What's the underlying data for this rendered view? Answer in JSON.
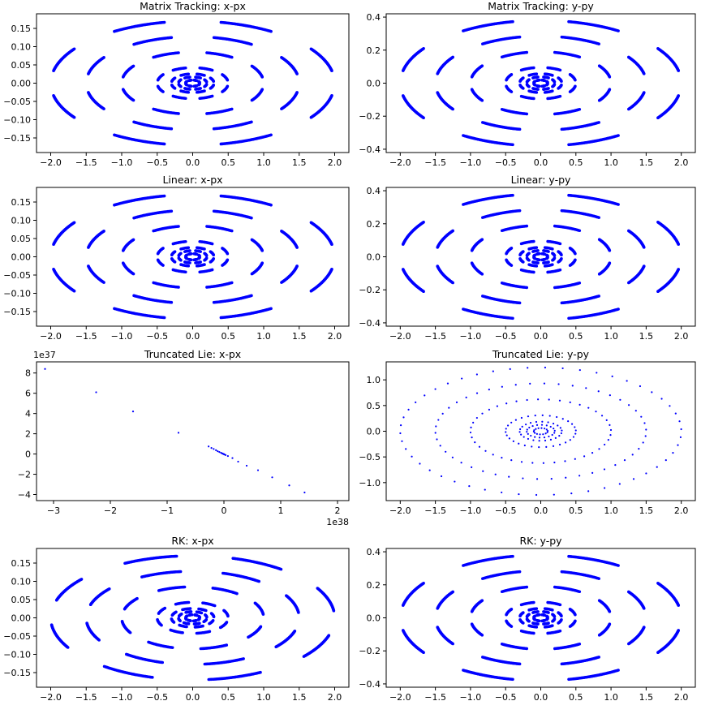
{
  "colors": {
    "points": "#0000ff",
    "axes": "#000000",
    "background": "#ffffff"
  },
  "chart_data": [
    {
      "type": "scatter",
      "title": "Matrix Tracking: x-px",
      "xlim": [
        -2.2,
        2.2
      ],
      "ylim": [
        -0.19,
        0.19
      ],
      "xticks": [
        -2.0,
        -1.5,
        -1.0,
        -0.5,
        0.0,
        0.5,
        1.0,
        1.5,
        2.0
      ],
      "yticks": [
        -0.15,
        -0.1,
        -0.05,
        0.0,
        0.05,
        0.1,
        0.15
      ],
      "x_tick_labels": [
        "−2.0",
        "−1.5",
        "−1.0",
        "−0.5",
        "0.0",
        "0.5",
        "1.0",
        "1.5",
        "2.0"
      ],
      "y_tick_labels": [
        "−0.15",
        "−0.10",
        "−0.05",
        "0.00",
        "0.05",
        "0.10",
        "0.15"
      ],
      "series": [
        {
          "pattern": "rings",
          "amplitudes": [
            0.1,
            0.2,
            0.3,
            0.5,
            1.0,
            1.5,
            2.0
          ],
          "momentum_scale": 0.085,
          "arc_count": 8,
          "arc_halfwidth_deg": 11,
          "phase_deg": 0
        }
      ]
    },
    {
      "type": "scatter",
      "title": "Matrix Tracking: y-py",
      "xlim": [
        -2.2,
        2.2
      ],
      "ylim": [
        -0.42,
        0.42
      ],
      "xticks": [
        -2.0,
        -1.5,
        -1.0,
        -0.5,
        0.0,
        0.5,
        1.0,
        1.5,
        2.0
      ],
      "yticks": [
        -0.4,
        -0.2,
        0.0,
        0.2,
        0.4
      ],
      "x_tick_labels": [
        "−2.0",
        "−1.5",
        "−1.0",
        "−0.5",
        "0.0",
        "0.5",
        "1.0",
        "1.5",
        "2.0"
      ],
      "y_tick_labels": [
        "−0.4",
        "−0.2",
        "0.0",
        "0.2",
        "0.4"
      ],
      "series": [
        {
          "pattern": "rings",
          "amplitudes": [
            0.1,
            0.2,
            0.3,
            0.5,
            1.0,
            1.5,
            2.0
          ],
          "momentum_scale": 0.19,
          "arc_count": 8,
          "arc_halfwidth_deg": 11,
          "phase_deg": 0
        }
      ]
    },
    {
      "type": "scatter",
      "title": "Linear: x-px",
      "xlim": [
        -2.2,
        2.2
      ],
      "ylim": [
        -0.19,
        0.19
      ],
      "xticks": [
        -2.0,
        -1.5,
        -1.0,
        -0.5,
        0.0,
        0.5,
        1.0,
        1.5,
        2.0
      ],
      "yticks": [
        -0.15,
        -0.1,
        -0.05,
        0.0,
        0.05,
        0.1,
        0.15
      ],
      "x_tick_labels": [
        "−2.0",
        "−1.5",
        "−1.0",
        "−0.5",
        "0.0",
        "0.5",
        "1.0",
        "1.5",
        "2.0"
      ],
      "y_tick_labels": [
        "−0.15",
        "−0.10",
        "−0.05",
        "0.00",
        "0.05",
        "0.10",
        "0.15"
      ],
      "series": [
        {
          "pattern": "rings",
          "amplitudes": [
            0.1,
            0.2,
            0.3,
            0.5,
            1.0,
            1.5,
            2.0
          ],
          "momentum_scale": 0.085,
          "arc_count": 8,
          "arc_halfwidth_deg": 11,
          "phase_deg": 0
        }
      ]
    },
    {
      "type": "scatter",
      "title": "Linear: y-py",
      "xlim": [
        -2.2,
        2.2
      ],
      "ylim": [
        -0.42,
        0.42
      ],
      "xticks": [
        -2.0,
        -1.5,
        -1.0,
        -0.5,
        0.0,
        0.5,
        1.0,
        1.5,
        2.0
      ],
      "yticks": [
        -0.4,
        -0.2,
        0.0,
        0.2,
        0.4
      ],
      "x_tick_labels": [
        "−2.0",
        "−1.5",
        "−1.0",
        "−0.5",
        "0.0",
        "0.5",
        "1.0",
        "1.5",
        "2.0"
      ],
      "y_tick_labels": [
        "−0.4",
        "−0.2",
        "0.0",
        "0.2",
        "0.4"
      ],
      "series": [
        {
          "pattern": "rings",
          "amplitudes": [
            0.1,
            0.2,
            0.3,
            0.5,
            1.0,
            1.5,
            2.0
          ],
          "momentum_scale": 0.19,
          "arc_count": 8,
          "arc_halfwidth_deg": 11,
          "phase_deg": 0
        }
      ]
    },
    {
      "type": "scatter",
      "title": "Truncated Lie: x-px",
      "xlim": [
        -3.3,
        2.2
      ],
      "ylim": [
        -4.6,
        9.1
      ],
      "x_offset_label": "1e38",
      "y_offset_label": "1e37",
      "xticks": [
        -3,
        -2,
        -1,
        0,
        1,
        2
      ],
      "yticks": [
        -4,
        -2,
        0,
        2,
        4,
        6,
        8
      ],
      "x_tick_labels": [
        "−3",
        "−2",
        "−1",
        "0",
        "1",
        "2"
      ],
      "y_tick_labels": [
        "−4",
        "−2",
        "0",
        "2",
        "4",
        "6",
        "8"
      ],
      "x_scale_note": "x values in units of 1e38, y values in units of 1e37",
      "series": [
        {
          "pattern": "points",
          "x": [
            -3.15,
            -2.25,
            -1.6,
            -0.8,
            -0.27,
            -0.22,
            -0.18,
            -0.14,
            -0.11,
            -0.08,
            -0.05,
            -0.03,
            -0.015,
            -0.005,
            0.0,
            0.01,
            0.03,
            0.07,
            0.15,
            0.25,
            0.4,
            0.6,
            0.85,
            1.15,
            1.42
          ],
          "y": [
            8.4,
            6.1,
            4.2,
            2.1,
            0.75,
            0.6,
            0.5,
            0.38,
            0.28,
            0.2,
            0.12,
            0.06,
            0.02,
            0.0,
            -0.02,
            -0.05,
            -0.1,
            -0.2,
            -0.4,
            -0.75,
            -1.15,
            -1.6,
            -2.3,
            -3.1,
            -3.8
          ]
        }
      ]
    },
    {
      "type": "scatter",
      "title": "Truncated Lie: y-py",
      "xlim": [
        -2.2,
        2.2
      ],
      "ylim": [
        -1.35,
        1.35
      ],
      "xticks": [
        -2.0,
        -1.5,
        -1.0,
        -0.5,
        0.0,
        0.5,
        1.0,
        1.5,
        2.0
      ],
      "yticks": [
        -1.0,
        -0.5,
        0.0,
        0.5,
        1.0
      ],
      "x_tick_labels": [
        "−2.0",
        "−1.5",
        "−1.0",
        "−0.5",
        "0.0",
        "0.5",
        "1.0",
        "1.5",
        "2.0"
      ],
      "y_tick_labels": [
        "−1.0",
        "−0.5",
        "0.0",
        "0.5",
        "1.0"
      ],
      "series": [
        {
          "pattern": "dotted-rings",
          "amplitudes": [
            0.1,
            0.2,
            0.3,
            0.5,
            1.0,
            1.5,
            2.0
          ],
          "momentum_scale": 0.62,
          "points_per_ring": [
            14,
            18,
            22,
            30,
            40,
            46,
            50
          ]
        }
      ]
    },
    {
      "type": "scatter",
      "title": "RK: x-px",
      "xlim": [
        -2.2,
        2.2
      ],
      "ylim": [
        -0.19,
        0.19
      ],
      "xticks": [
        -2.0,
        -1.5,
        -1.0,
        -0.5,
        0.0,
        0.5,
        1.0,
        1.5,
        2.0
      ],
      "yticks": [
        -0.15,
        -0.1,
        -0.05,
        0.0,
        0.05,
        0.1,
        0.15
      ],
      "x_tick_labels": [
        "−2.0",
        "−1.5",
        "−1.0",
        "−0.5",
        "0.0",
        "0.5",
        "1.0",
        "1.5",
        "2.0"
      ],
      "y_tick_labels": [
        "−0.15",
        "−0.10",
        "−0.05",
        "0.00",
        "0.05",
        "0.10",
        "0.15"
      ],
      "series": [
        {
          "pattern": "rings",
          "amplitudes": [
            0.1,
            0.2,
            0.3,
            0.5,
            1.0,
            1.5,
            2.0
          ],
          "momentum_scale": 0.085,
          "arc_count": 8,
          "arc_halfwidth_deg": 11,
          "phase_deg": 5
        }
      ]
    },
    {
      "type": "scatter",
      "title": "RK: y-py",
      "xlim": [
        -2.2,
        2.2
      ],
      "ylim": [
        -0.42,
        0.42
      ],
      "xticks": [
        -2.0,
        -1.5,
        -1.0,
        -0.5,
        0.0,
        0.5,
        1.0,
        1.5,
        2.0
      ],
      "yticks": [
        -0.4,
        -0.2,
        0.0,
        0.2,
        0.4
      ],
      "x_tick_labels": [
        "−2.0",
        "−1.5",
        "−1.0",
        "−0.5",
        "0.0",
        "0.5",
        "1.0",
        "1.5",
        "2.0"
      ],
      "y_tick_labels": [
        "−0.4",
        "−0.2",
        "0.0",
        "0.2",
        "0.4"
      ],
      "series": [
        {
          "pattern": "rings",
          "amplitudes": [
            0.1,
            0.2,
            0.3,
            0.5,
            1.0,
            1.5,
            2.0
          ],
          "momentum_scale": 0.19,
          "arc_count": 8,
          "arc_halfwidth_deg": 11,
          "phase_deg": 0
        }
      ]
    }
  ]
}
